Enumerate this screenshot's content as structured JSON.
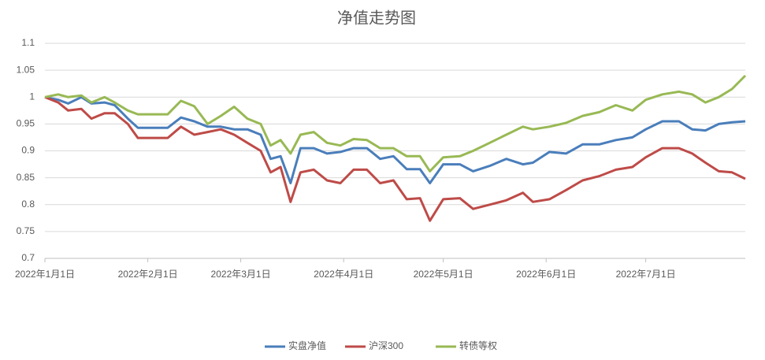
{
  "chart_data": {
    "type": "line",
    "title": "净值走势图",
    "x": [
      "2022-01-01",
      "2022-01-05",
      "2022-01-08",
      "2022-01-12",
      "2022-01-15",
      "2022-01-19",
      "2022-01-22",
      "2022-01-26",
      "2022-01-29",
      "2022-02-07",
      "2022-02-11",
      "2022-02-15",
      "2022-02-19",
      "2022-02-23",
      "2022-02-27",
      "2022-03-03",
      "2022-03-07",
      "2022-03-10",
      "2022-03-13",
      "2022-03-16",
      "2022-03-19",
      "2022-03-23",
      "2022-03-27",
      "2022-03-31",
      "2022-04-04",
      "2022-04-08",
      "2022-04-12",
      "2022-04-16",
      "2022-04-20",
      "2022-04-24",
      "2022-04-27",
      "2022-05-01",
      "2022-05-06",
      "2022-05-10",
      "2022-05-15",
      "2022-05-20",
      "2022-05-25",
      "2022-05-28",
      "2022-06-02",
      "2022-06-07",
      "2022-06-12",
      "2022-06-17",
      "2022-06-22",
      "2022-06-27",
      "2022-07-01",
      "2022-07-06",
      "2022-07-11",
      "2022-07-15",
      "2022-07-19",
      "2022-07-23",
      "2022-07-27",
      "2022-07-31"
    ],
    "series": [
      {
        "name": "实盘净值",
        "color": "#4a7ebb",
        "values": [
          1.0,
          0.995,
          0.988,
          1.0,
          0.988,
          0.99,
          0.985,
          0.96,
          0.943,
          0.943,
          0.962,
          0.955,
          0.945,
          0.945,
          0.94,
          0.94,
          0.93,
          0.885,
          0.89,
          0.84,
          0.905,
          0.905,
          0.895,
          0.898,
          0.905,
          0.905,
          0.885,
          0.89,
          0.866,
          0.866,
          0.84,
          0.875,
          0.875,
          0.862,
          0.872,
          0.885,
          0.875,
          0.878,
          0.898,
          0.895,
          0.912,
          0.912,
          0.92,
          0.925,
          0.94,
          0.955,
          0.955,
          0.94,
          0.938,
          0.95,
          0.953,
          0.955
        ]
      },
      {
        "name": "沪深300",
        "color": "#be4b48",
        "values": [
          1.0,
          0.99,
          0.975,
          0.978,
          0.96,
          0.97,
          0.97,
          0.95,
          0.924,
          0.924,
          0.945,
          0.93,
          0.935,
          0.94,
          0.93,
          0.915,
          0.9,
          0.86,
          0.87,
          0.805,
          0.86,
          0.865,
          0.845,
          0.84,
          0.865,
          0.865,
          0.84,
          0.845,
          0.81,
          0.812,
          0.77,
          0.81,
          0.812,
          0.792,
          0.8,
          0.808,
          0.822,
          0.805,
          0.81,
          0.827,
          0.845,
          0.853,
          0.865,
          0.87,
          0.888,
          0.905,
          0.905,
          0.895,
          0.878,
          0.862,
          0.86,
          0.848
        ]
      },
      {
        "name": "转债等权",
        "color": "#98b954",
        "values": [
          1.0,
          1.005,
          1.0,
          1.003,
          0.99,
          1.0,
          0.99,
          0.975,
          0.968,
          0.968,
          0.993,
          0.983,
          0.95,
          0.965,
          0.982,
          0.96,
          0.95,
          0.91,
          0.92,
          0.895,
          0.93,
          0.935,
          0.915,
          0.91,
          0.922,
          0.92,
          0.905,
          0.905,
          0.89,
          0.89,
          0.862,
          0.888,
          0.89,
          0.9,
          0.915,
          0.93,
          0.945,
          0.94,
          0.945,
          0.952,
          0.965,
          0.972,
          0.985,
          0.975,
          0.995,
          1.005,
          1.01,
          1.005,
          0.99,
          1.0,
          1.015,
          1.04
        ]
      }
    ],
    "xlim": [
      "2022-01-01",
      "2022-07-31"
    ],
    "xticks": [
      {
        "value": "2022-01-01",
        "label": "2022年1月1日"
      },
      {
        "value": "2022-02-01",
        "label": "2022年2月1日"
      },
      {
        "value": "2022-03-01",
        "label": "2022年3月1日"
      },
      {
        "value": "2022-04-01",
        "label": "2022年4月1日"
      },
      {
        "value": "2022-05-01",
        "label": "2022年5月1日"
      },
      {
        "value": "2022-06-01",
        "label": "2022年6月1日"
      },
      {
        "value": "2022-07-01",
        "label": "2022年7月1日"
      }
    ],
    "ylim": [
      0.7,
      1.1
    ],
    "yticks": [
      0.7,
      0.75,
      0.8,
      0.85,
      0.9,
      0.95,
      1,
      1.05,
      1.1
    ],
    "grid": true,
    "legend": "bottom"
  }
}
